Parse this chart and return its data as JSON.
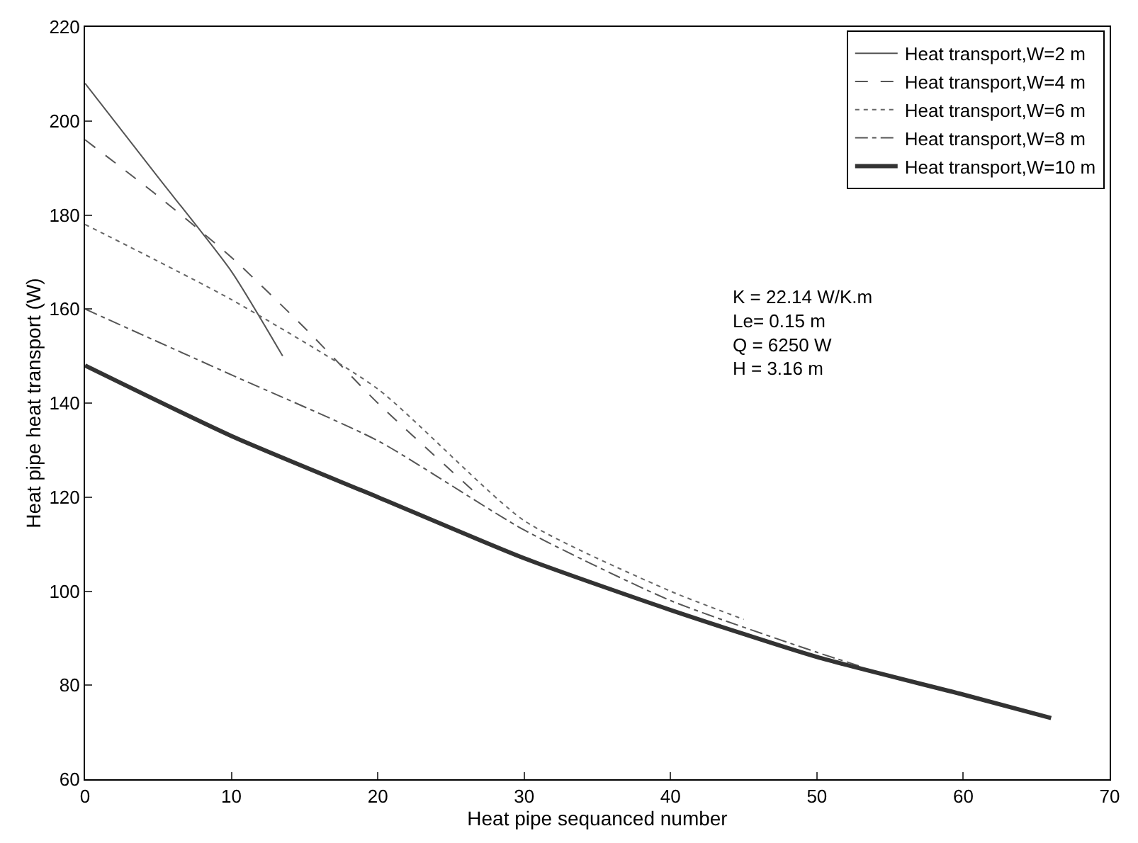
{
  "chart_data": {
    "type": "line",
    "xlabel": "Heat pipe sequanced number",
    "ylabel": "Heat pipe heat transport (W)",
    "xlim": [
      0,
      70
    ],
    "ylim": [
      60,
      220
    ],
    "xticks": [
      0,
      10,
      20,
      30,
      40,
      50,
      60,
      70
    ],
    "yticks": [
      60,
      80,
      100,
      120,
      140,
      160,
      180,
      200,
      220
    ],
    "grid": false,
    "legend": "top right",
    "marker": "none",
    "annotations": [
      "K = 22.14 W/K.m\nLe= 0.15 m\nQ = 6250 W\nH = 3.16 m"
    ],
    "series": [
      {
        "name": "Heat transport,W=2 m",
        "color": "#555555",
        "line_style": "solid",
        "x": [
          0,
          5,
          10,
          13.5
        ],
        "values": [
          208,
          188,
          168,
          150
        ]
      },
      {
        "name": "Heat transport,W=4 m",
        "color": "#555555",
        "line_style": "dashed",
        "x": [
          0,
          5,
          10,
          15,
          20,
          27
        ],
        "values": [
          196,
          184,
          171,
          156,
          140,
          120
        ]
      },
      {
        "name": "Heat transport,W=6 m",
        "color": "#666666",
        "line_style": "dotted",
        "x": [
          0,
          10,
          20,
          30,
          40,
          45
        ],
        "values": [
          178,
          162,
          143,
          115,
          100,
          94
        ]
      },
      {
        "name": "Heat transport,W=8 m",
        "color": "#555555",
        "line_style": "dashdot",
        "x": [
          0,
          10,
          20,
          30,
          40,
          50,
          53
        ],
        "values": [
          160,
          146,
          132,
          113,
          98,
          87,
          84
        ]
      },
      {
        "name": "Heat transport,W=10 m",
        "color": "#333333",
        "line_style": "solid",
        "x": [
          0,
          10,
          20,
          30,
          40,
          50,
          60,
          66
        ],
        "values": [
          148,
          133,
          120,
          107,
          96,
          86,
          78,
          73
        ]
      }
    ]
  }
}
